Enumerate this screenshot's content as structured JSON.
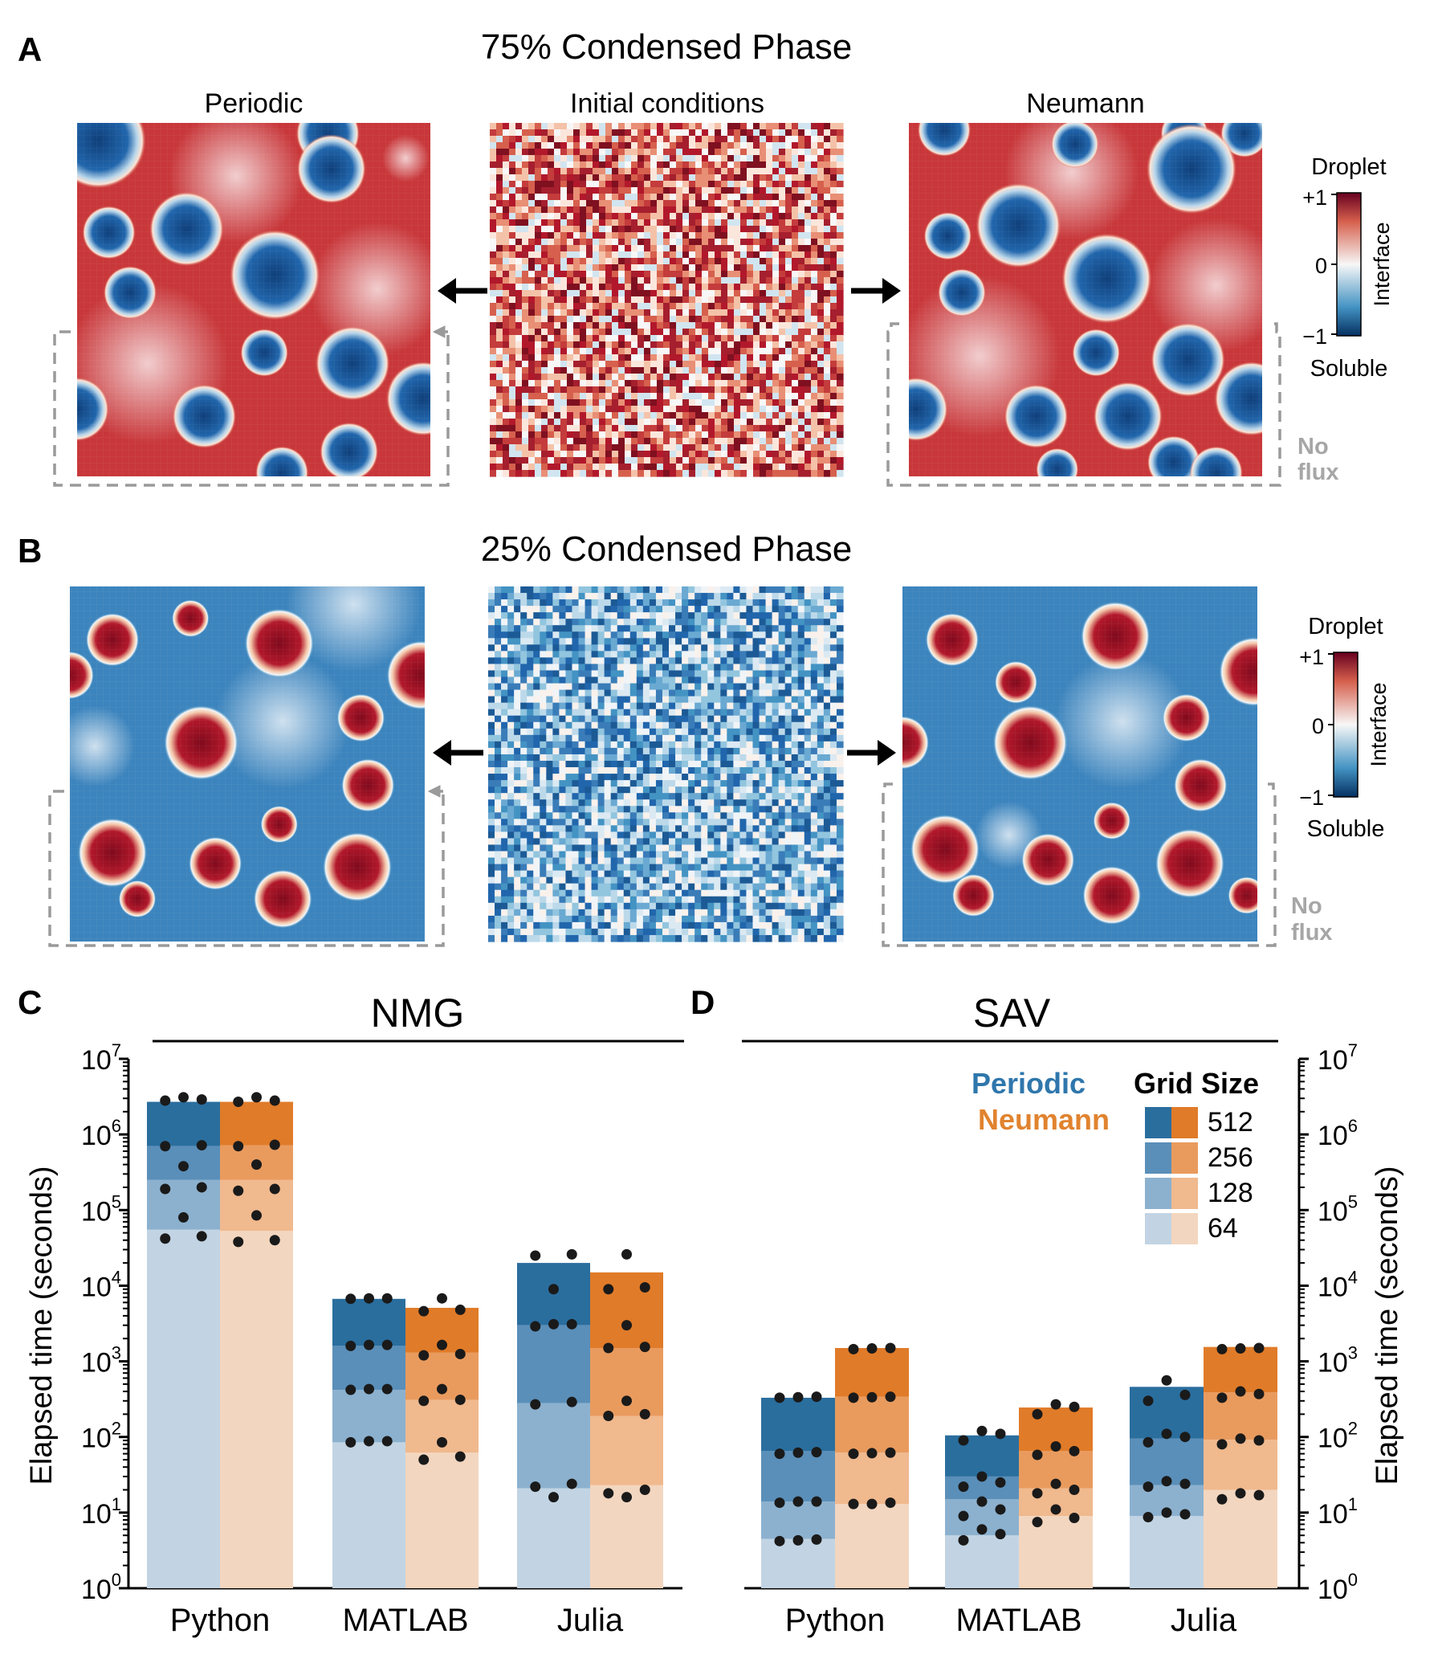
{
  "panels": {
    "A": {
      "letter": "A",
      "title": "75% Condensed Phase",
      "labels": {
        "left": "Periodic",
        "center": "Initial conditions",
        "right": "Neumann"
      },
      "no_flux": [
        "No",
        "flux"
      ],
      "background_field": "droplet",
      "droplets": "soluble",
      "colorbar": {
        "top_label": "Droplet",
        "bottom_label": "Soluble",
        "side_label": "Interface",
        "ticks": [
          "+1",
          "0",
          "−1"
        ]
      }
    },
    "B": {
      "letter": "B",
      "title": "25% Condensed Phase",
      "labels": {
        "left": "",
        "center": "",
        "right": ""
      },
      "no_flux": [
        "No",
        "flux"
      ],
      "background_field": "soluble",
      "droplets": "droplet",
      "colorbar": {
        "top_label": "Droplet",
        "bottom_label": "Soluble",
        "side_label": "Interface",
        "ticks": [
          "+1",
          "0",
          "−1"
        ]
      }
    },
    "C": {
      "letter": "C"
    },
    "D": {
      "letter": "D"
    }
  },
  "colors": {
    "red_dark": "#b2182b",
    "red": "#d6604d",
    "white": "#f7f7f7",
    "blue": "#4393c3",
    "blue_dark": "#2166ac",
    "periodic": [
      "#2a6e9e",
      "#5a8fb9",
      "#8cb1cf",
      "#c2d4e3"
    ],
    "neumann": [
      "#e07b29",
      "#e99b5e",
      "#f0b98e",
      "#f3d6bf"
    ],
    "periodic_label": "#2f77ac",
    "neumann_label": "#e1832f",
    "arrow_dashed": "#9a9a9a",
    "dots": "#1a1a1a"
  },
  "legend": {
    "periodic_label": "Periodic",
    "neumann_label": "Neumann",
    "title": "Grid Size",
    "sizes": [
      "512",
      "256",
      "128",
      "64"
    ]
  },
  "chart_data": [
    {
      "type": "bar",
      "title": "NMG",
      "ylabel": "Elapsed time (seconds)",
      "y_scale": "log",
      "ylim": [
        1,
        10000000
      ],
      "y_ticks": [
        "10^0",
        "10^1",
        "10^2",
        "10^3",
        "10^4",
        "10^5",
        "10^6",
        "10^7"
      ],
      "categories": [
        "Python",
        "MATLAB",
        "Julia"
      ],
      "grid_sizes": [
        64,
        128,
        256,
        512
      ],
      "series": [
        {
          "name": "Periodic",
          "values": {
            "Python": [
              55000,
              250000,
              700000,
              2700000
            ],
            "MATLAB": [
              85,
              420,
              1600,
              6700
            ],
            "Julia": [
              21,
              280,
              3000,
              20000
            ]
          }
        },
        {
          "name": "Neumann",
          "values": {
            "Python": [
              53000,
              250000,
              720000,
              2700000
            ],
            "MATLAB": [
              62,
              310,
              1300,
              5100
            ],
            "Julia": [
              23,
              190,
              1500,
              15000
            ]
          }
        }
      ],
      "points": {
        "Periodic": {
          "Python": [
            [
              42000,
              45000,
              190000,
              200000,
              700000,
              720000,
              2800000,
              2900000
            ],
            [
              80000,
              380000,
              3100000
            ]
          ],
          "MATLAB": [
            [
              85,
              88,
              420,
              430,
              1600,
              1650,
              6700,
              6800
            ],
            [
              88,
              430,
              1650,
              6800
            ]
          ],
          "Julia": [
            [
              22,
              24,
              270,
              290,
              2900,
              3100,
              25000,
              26000
            ],
            [
              16,
              3100,
              9000
            ]
          ]
        },
        "Neumann": {
          "Python": [
            [
              38000,
              40000,
              180000,
              190000,
              700000,
              730000,
              2700000,
              2800000
            ],
            [
              85000,
              400000,
              3100000
            ]
          ],
          "MATLAB": [
            [
              50,
              55,
              300,
              310,
              1200,
              1250,
              4600,
              4800
            ],
            [
              85,
              430,
              1650,
              6800
            ]
          ],
          "Julia": [
            [
              18,
              20,
              190,
              200,
              1500,
              1550,
              9000,
              9500
            ],
            [
              16,
              300,
              3000,
              26000
            ]
          ]
        }
      }
    },
    {
      "type": "bar",
      "title": "SAV",
      "ylabel": "Elapsed time (seconds)",
      "y_scale": "log",
      "ylim": [
        1,
        10000000
      ],
      "y_ticks": [
        "10^0",
        "10^1",
        "10^2",
        "10^3",
        "10^4",
        "10^5",
        "10^6",
        "10^7"
      ],
      "categories": [
        "Python",
        "MATLAB",
        "Julia"
      ],
      "grid_sizes": [
        64,
        128,
        256,
        512
      ],
      "series": [
        {
          "name": "Periodic",
          "values": {
            "Python": [
              4.5,
              14,
              65,
              330
            ],
            "MATLAB": [
              5,
              15,
              30,
              105
            ],
            "Julia": [
              9,
              23,
              95,
              460
            ]
          }
        },
        {
          "name": "Neumann",
          "values": {
            "Python": [
              13,
              62,
              340,
              1500
            ],
            "MATLAB": [
              9,
              21,
              65,
              245
            ],
            "Julia": [
              20,
              92,
              390,
              1550
            ]
          }
        }
      ],
      "points": {
        "Periodic": {
          "Python": [
            [
              4.2,
              4.4,
              13.5,
              14,
              60,
              63,
              330,
              340
            ],
            [
              4.3,
              14,
              62,
              335
            ]
          ],
          "MATLAB": [
            [
              4.3,
              5.2,
              9,
              11,
              22,
              25,
              90,
              110
            ],
            [
              6,
              14,
              30,
              120
            ]
          ],
          "Julia": [
            [
              8.7,
              9.5,
              22,
              24,
              85,
              100,
              300,
              360
            ],
            [
              10,
              26,
              110,
              560
            ]
          ]
        },
        "Neumann": {
          "Python": [
            [
              13,
              13.5,
              60,
              62,
              330,
              340,
              1450,
              1500
            ],
            [
              13,
              61,
              335,
              1480
            ]
          ],
          "MATLAB": [
            [
              7.5,
              8.5,
              18,
              20,
              58,
              65,
              200,
              250
            ],
            [
              11,
              24,
              75,
              270
            ]
          ],
          "Julia": [
            [
              15,
              17,
              80,
              90,
              330,
              370,
              1450,
              1500
            ],
            [
              18,
              95,
              400,
              1480
            ]
          ]
        }
      }
    }
  ]
}
